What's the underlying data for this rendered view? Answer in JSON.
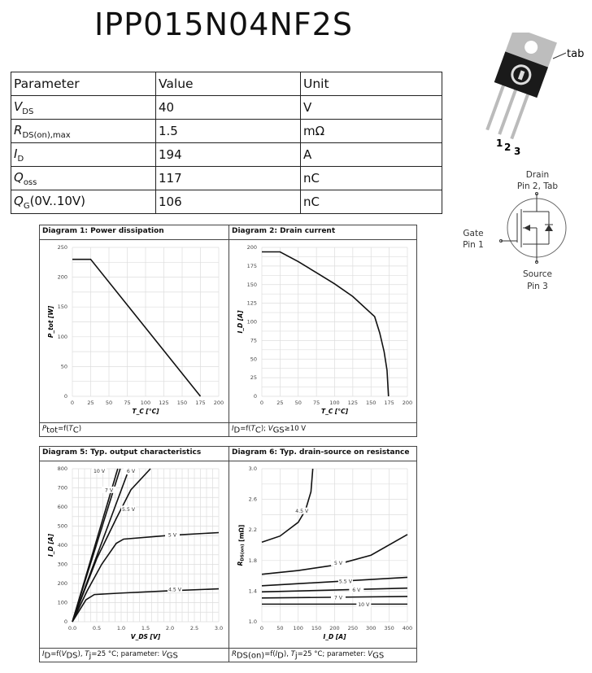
{
  "title": "IPP015N04NF2S",
  "table": {
    "headers": [
      "Parameter",
      "Value",
      "Unit"
    ],
    "rows": [
      {
        "param": "V",
        "sub": "DS",
        "value": "40",
        "unit": "V"
      },
      {
        "param": "R",
        "sub": "DS(on),max",
        "value": "1.5",
        "unit": "mΩ"
      },
      {
        "param": "I",
        "sub": "D",
        "value": "194",
        "unit": "A"
      },
      {
        "param": "Q",
        "sub": "oss",
        "value": "117",
        "unit": "nC"
      },
      {
        "param": "Q",
        "sub": "G",
        "suffix": "(0V..10V)",
        "value": "106",
        "unit": "nC"
      }
    ]
  },
  "package": {
    "tab_label": "tab",
    "pins": [
      "1",
      "2",
      "3"
    ]
  },
  "schematic": {
    "drain": "Drain",
    "drain_pin": "Pin 2, Tab",
    "gate": "Gate",
    "gate_pin": "Pin 1",
    "source": "Source",
    "source_pin": "Pin 3"
  },
  "chart_data": [
    {
      "type": "line",
      "title": "Diagram 1: Power dissipation",
      "xlabel": "T_C [°C]",
      "ylabel": "P_tot [W]",
      "xlim": [
        0,
        200
      ],
      "ylim": [
        0,
        250
      ],
      "xticks": [
        0,
        25,
        50,
        75,
        100,
        125,
        150,
        175,
        200
      ],
      "yticks": [
        0,
        50,
        100,
        150,
        200,
        250
      ],
      "grid": true,
      "caption": "P_tot=f(T_C)",
      "series": [
        {
          "x": [
            0,
            25,
            175
          ],
          "y": [
            230,
            230,
            0
          ]
        }
      ]
    },
    {
      "type": "line",
      "title": "Diagram 2: Drain current",
      "xlabel": "T_C [°C]",
      "ylabel": "I_D [A]",
      "xlim": [
        0,
        200
      ],
      "ylim": [
        0,
        200
      ],
      "xticks": [
        0,
        25,
        50,
        75,
        100,
        125,
        150,
        175,
        200
      ],
      "yticks": [
        0,
        25,
        50,
        75,
        100,
        125,
        150,
        175,
        200
      ],
      "grid": true,
      "caption": "I_D=f(T_C); V_GS≥10 V",
      "series": [
        {
          "x": [
            0,
            25,
            50,
            75,
            100,
            125,
            155,
            162,
            168,
            172,
            174
          ],
          "y": [
            194,
            194,
            181,
            166,
            151,
            134,
            107,
            85,
            60,
            35,
            0
          ]
        }
      ]
    },
    {
      "type": "line",
      "title": "Diagram 5: Typ. output characteristics",
      "xlabel": "V_DS [V]",
      "ylabel": "I_D [A]",
      "xlim": [
        0,
        3
      ],
      "ylim": [
        0,
        800
      ],
      "xticks": [
        "0.0",
        "0.5",
        "1.0",
        "1.5",
        "2.0",
        "2.5",
        "3.0"
      ],
      "yticks": [
        0,
        100,
        200,
        300,
        400,
        500,
        600,
        700,
        800
      ],
      "grid": true,
      "caption": "I_D=f(V_DS), T_j=25 °C; parameter: V_GS",
      "series": [
        {
          "name": "10 V",
          "x": [
            0,
            0.93
          ],
          "y": [
            0,
            800
          ],
          "label_at": [
            0.55,
            790
          ]
        },
        {
          "name": "7 V",
          "x": [
            0,
            0.98
          ],
          "y": [
            0,
            800
          ],
          "label_at": [
            0.75,
            690
          ]
        },
        {
          "name": "6 V",
          "x": [
            0,
            1.12
          ],
          "y": [
            0,
            770
          ],
          "label_at": [
            1.2,
            790
          ]
        },
        {
          "name": "5.5 V",
          "x": [
            0,
            0.5,
            0.9,
            1.2,
            1.6
          ],
          "y": [
            0,
            330,
            540,
            690,
            800
          ],
          "label_at": [
            1.15,
            590
          ]
        },
        {
          "name": "5 V",
          "x": [
            0,
            0.3,
            0.6,
            0.9,
            1.05,
            2.0,
            3.0
          ],
          "y": [
            0,
            160,
            300,
            410,
            432,
            452,
            466
          ],
          "label_at": [
            2.05,
            456
          ]
        },
        {
          "name": "4.5 V",
          "x": [
            0,
            0.28,
            0.45,
            1.0,
            2.0,
            3.0
          ],
          "y": [
            0,
            115,
            142,
            150,
            162,
            172
          ],
          "label_at": [
            2.1,
            170
          ]
        }
      ]
    },
    {
      "type": "line",
      "title": "Diagram 6: Typ. drain-source on resistance",
      "xlabel": "I_D [A]",
      "ylabel": "R_DS(on) [mΩ]",
      "xlim": [
        0,
        400
      ],
      "ylim": [
        1.0,
        3.0
      ],
      "xticks": [
        0,
        50,
        100,
        150,
        200,
        250,
        300,
        350,
        400
      ],
      "yticks": [
        "1.0",
        "1.4",
        "1.8",
        "2.2",
        "2.6",
        "3.0"
      ],
      "grid": true,
      "caption": "R_DS(on)=f(I_D), T_j=25 °C; parameter: V_GS",
      "series": [
        {
          "name": "4.5 V",
          "x": [
            0,
            50,
            100,
            120,
            135,
            140
          ],
          "y": [
            2.04,
            2.12,
            2.3,
            2.46,
            2.7,
            3.0
          ],
          "label_at": [
            110,
            2.45
          ]
        },
        {
          "name": "5 V",
          "x": [
            0,
            100,
            200,
            300,
            400
          ],
          "y": [
            1.62,
            1.67,
            1.74,
            1.87,
            2.14
          ],
          "label_at": [
            210,
            1.77
          ]
        },
        {
          "name": "5.5 V",
          "x": [
            0,
            400
          ],
          "y": [
            1.47,
            1.58
          ],
          "label_at": [
            230,
            1.53
          ]
        },
        {
          "name": "6 V",
          "x": [
            0,
            400
          ],
          "y": [
            1.39,
            1.44
          ],
          "label_at": [
            260,
            1.42
          ]
        },
        {
          "name": "7 V",
          "x": [
            0,
            400
          ],
          "y": [
            1.31,
            1.33
          ],
          "label_at": [
            210,
            1.32
          ]
        },
        {
          "name": "10 V",
          "x": [
            0,
            400
          ],
          "y": [
            1.23,
            1.23
          ],
          "label_at": [
            280,
            1.23
          ]
        }
      ]
    }
  ]
}
